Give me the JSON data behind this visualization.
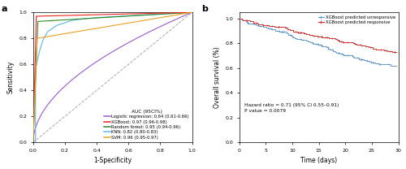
{
  "panel_a": {
    "title_label": "a",
    "xlabel": "1-Specificity",
    "ylabel": "Sensitivity",
    "xlim": [
      0,
      1.0
    ],
    "ylim": [
      0,
      1.0
    ],
    "xticks": [
      0.0,
      0.2,
      0.4,
      0.6,
      0.8,
      1.0
    ],
    "yticks": [
      0.0,
      0.2,
      0.4,
      0.6,
      0.8,
      1.0
    ],
    "legend_title": "AUC (95CI%)",
    "curves": [
      {
        "name": "Logistic regression: 0.64 (0.61-0.66)",
        "color": "#9B59D0",
        "auc": 0.64
      },
      {
        "name": "XGBoost: 0.97 (0.96-0.98)",
        "color": "#E8241C",
        "auc": 0.97
      },
      {
        "name": "Random forest: 0.95 (0.94-0.96)",
        "color": "#2E8B22",
        "auc": 0.95
      },
      {
        "name": "KNN: 0.82 (0.80-0.83)",
        "color": "#5BB8E8",
        "auc": 0.82
      },
      {
        "name": "SVM: 0.96 (0.95-0.97)",
        "color": "#E8A020",
        "auc": 0.96
      }
    ],
    "diag_color": "#AAAAAA",
    "linewidth": 0.8
  },
  "panel_b": {
    "title_label": "b",
    "xlabel": "Time (days)",
    "ylabel": "Overall survival (%)",
    "xlim": [
      0,
      30
    ],
    "ylim": [
      0.0,
      1.05
    ],
    "yticks": [
      0.0,
      0.2,
      0.4,
      0.6,
      0.8,
      1.0
    ],
    "ytick_labels": [
      "0.0",
      "0.2",
      "0.4",
      "0.6",
      "0.8",
      "1.0"
    ],
    "xticks": [
      0,
      5,
      10,
      15,
      20,
      25,
      30
    ],
    "annotation": "Hazard ratio = 0.71 (95% CI 0.55–0.91)\nP value = 0.0079",
    "curves": [
      {
        "name": "XGBoost predicted unresponsive",
        "color": "#6699CC",
        "end": 0.615
      },
      {
        "name": "XGBoost predicted responsive",
        "color": "#CC3333",
        "end": 0.73
      }
    ],
    "linewidth": 0.7
  }
}
